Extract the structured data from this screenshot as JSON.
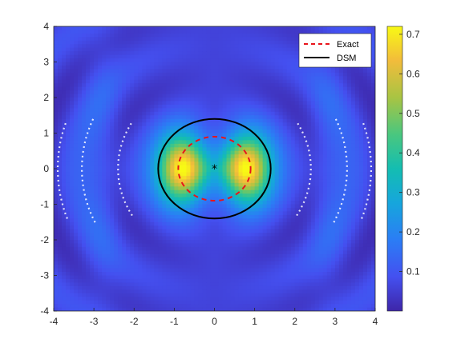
{
  "chart_data": {
    "type": "heatmap",
    "xlim": [
      -4,
      4
    ],
    "ylim": [
      -4,
      4
    ],
    "x_ticks": [
      "-4",
      "-3",
      "-2",
      "-1",
      "0",
      "1",
      "2",
      "3",
      "4"
    ],
    "y_ticks": [
      "4",
      "3",
      "2",
      "1",
      "0",
      "-1",
      "-2",
      "-3",
      "-4"
    ],
    "colorbar": {
      "colormap": "parula",
      "range": [
        0,
        0.72
      ],
      "ticks": [
        "0.7",
        "0.6",
        "0.5",
        "0.4",
        "0.3",
        "0.2",
        "0.1"
      ],
      "tick_values": [
        0.7,
        0.6,
        0.5,
        0.4,
        0.3,
        0.2,
        0.1
      ]
    },
    "peaks": [
      {
        "x": -0.8,
        "y": 0,
        "value": 0.72
      },
      {
        "x": 0.8,
        "y": 0,
        "value": 0.72
      }
    ],
    "series": [
      {
        "name": "Exact",
        "shape": "circle",
        "center": [
          0,
          0
        ],
        "radius": 0.9,
        "color": "#e8141c",
        "style": "dashed"
      },
      {
        "name": "DSM",
        "shape": "circle",
        "center": [
          0,
          0
        ],
        "radius": 1.4,
        "color": "#000000",
        "style": "solid"
      }
    ],
    "center_marker": {
      "x": 0,
      "y": 0,
      "symbol": "*"
    },
    "legend_position": "top-right",
    "grid": false
  }
}
